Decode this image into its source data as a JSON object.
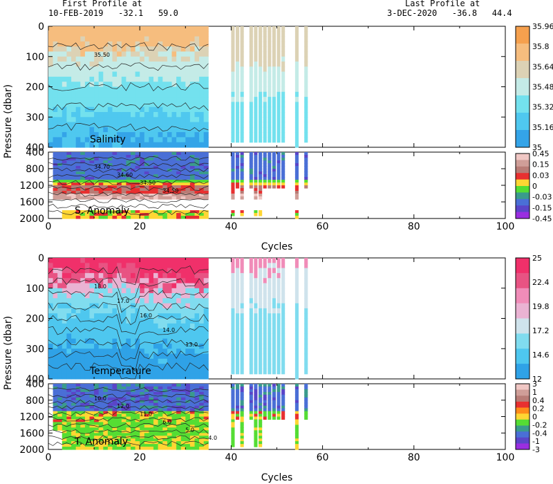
{
  "header": {
    "first_label": "First Profile at",
    "first_value": "10-FEB-2019   -32.1   59.0",
    "last_label": "Last Profile at",
    "last_value": "3-DEC-2020   -36.8   44.4"
  },
  "chart_data": [
    {
      "id": "salinity",
      "type": "heatmap",
      "title": "Salinity",
      "ylabel": "Pressure (dbar)",
      "xlabel": "",
      "xlim": [
        0,
        100
      ],
      "ylim": [
        400,
        0
      ],
      "xticks": [
        0,
        20,
        40,
        60,
        80,
        100
      ],
      "yticks": [
        0,
        100,
        200,
        300,
        400
      ],
      "colorbar": {
        "labels": [
          "35.96",
          "35.8",
          "35.64",
          "35.48",
          "35.32",
          "35.16",
          "35"
        ],
        "colors": [
          "#f5a04e",
          "#f6bd7e",
          "#dcd2b5",
          "#c4ebe7",
          "#73e1ee",
          "#4fc8ef",
          "#34a4e8"
        ]
      },
      "cycles_with_data": [
        1,
        2,
        3,
        4,
        5,
        6,
        7,
        8,
        9,
        10,
        11,
        12,
        13,
        14,
        15,
        16,
        17,
        18,
        19,
        20,
        21,
        22,
        23,
        24,
        25,
        26,
        27,
        28,
        29,
        30,
        31,
        32,
        33,
        34,
        35,
        41,
        42,
        43,
        45,
        46,
        47,
        48,
        49,
        50,
        51,
        52,
        55,
        57
      ],
      "contour_labels": [
        "35.50"
      ]
    },
    {
      "id": "s_anomaly",
      "type": "heatmap",
      "title": "S. Anomaly",
      "ylabel": "",
      "xlabel": "Cycles",
      "xlim": [
        0,
        100
      ],
      "ylim": [
        2000,
        400
      ],
      "xticks": [
        0,
        20,
        40,
        60,
        80,
        100
      ],
      "yticks": [
        400,
        800,
        1200,
        1600,
        2000
      ],
      "colorbar": {
        "labels": [
          "0.45",
          "0.15",
          "0.03",
          "0",
          "-0.03",
          "-0.15",
          "-0.45"
        ],
        "colors": [
          "#f0c7c4",
          "#cf9e98",
          "#b87c76",
          "#e83030",
          "#ffd633",
          "#55dd33",
          "#3a9b8c",
          "#4a6fd6",
          "#5a45c8",
          "#9a2ee0"
        ]
      },
      "contour_labels": [
        "34.70",
        "34.60",
        "34.50",
        "34.50"
      ]
    },
    {
      "id": "temperature",
      "type": "heatmap",
      "title": "Temperature",
      "ylabel": "Pressure (dbar)",
      "xlabel": "",
      "xlim": [
        0,
        100
      ],
      "ylim": [
        400,
        0
      ],
      "xticks": [
        0,
        20,
        40,
        60,
        80,
        100
      ],
      "yticks": [
        0,
        100,
        200,
        300,
        400
      ],
      "colorbar": {
        "labels": [
          "25",
          "22.4",
          "19.8",
          "17.2",
          "14.6",
          "12"
        ],
        "colors": [
          "#f0306a",
          "#e85383",
          "#f08cb8",
          "#eab3d3",
          "#cfe3ec",
          "#80dcef",
          "#4ec7ef",
          "#2fa2e7"
        ]
      },
      "contour_labels": [
        "18.0",
        "17.0",
        "16.0",
        "14.0",
        "13.0"
      ]
    },
    {
      "id": "t_anomaly",
      "type": "heatmap",
      "title": "T. Anomaly",
      "ylabel": "",
      "xlabel": "Cycles",
      "xlim": [
        0,
        100
      ],
      "ylim": [
        2000,
        400
      ],
      "xticks": [
        0,
        20,
        40,
        60,
        80,
        100
      ],
      "yticks": [
        400,
        800,
        1200,
        1600,
        2000
      ],
      "colorbar": {
        "labels": [
          "3",
          "1",
          "0.4",
          "0.2",
          "0",
          "-0.2",
          "-0.4",
          "-1",
          "-3"
        ],
        "colors": [
          "#f0c7c4",
          "#cf9e98",
          "#b87c76",
          "#e83030",
          "#ff8c1a",
          "#ffd633",
          "#55dd33",
          "#3a9b8c",
          "#4a6fd6",
          "#5a45c8",
          "#9a2ee0"
        ]
      },
      "contour_labels": [
        "10.0",
        "12.0",
        "11.0",
        "6.0",
        "5.0",
        "4.0"
      ]
    }
  ]
}
